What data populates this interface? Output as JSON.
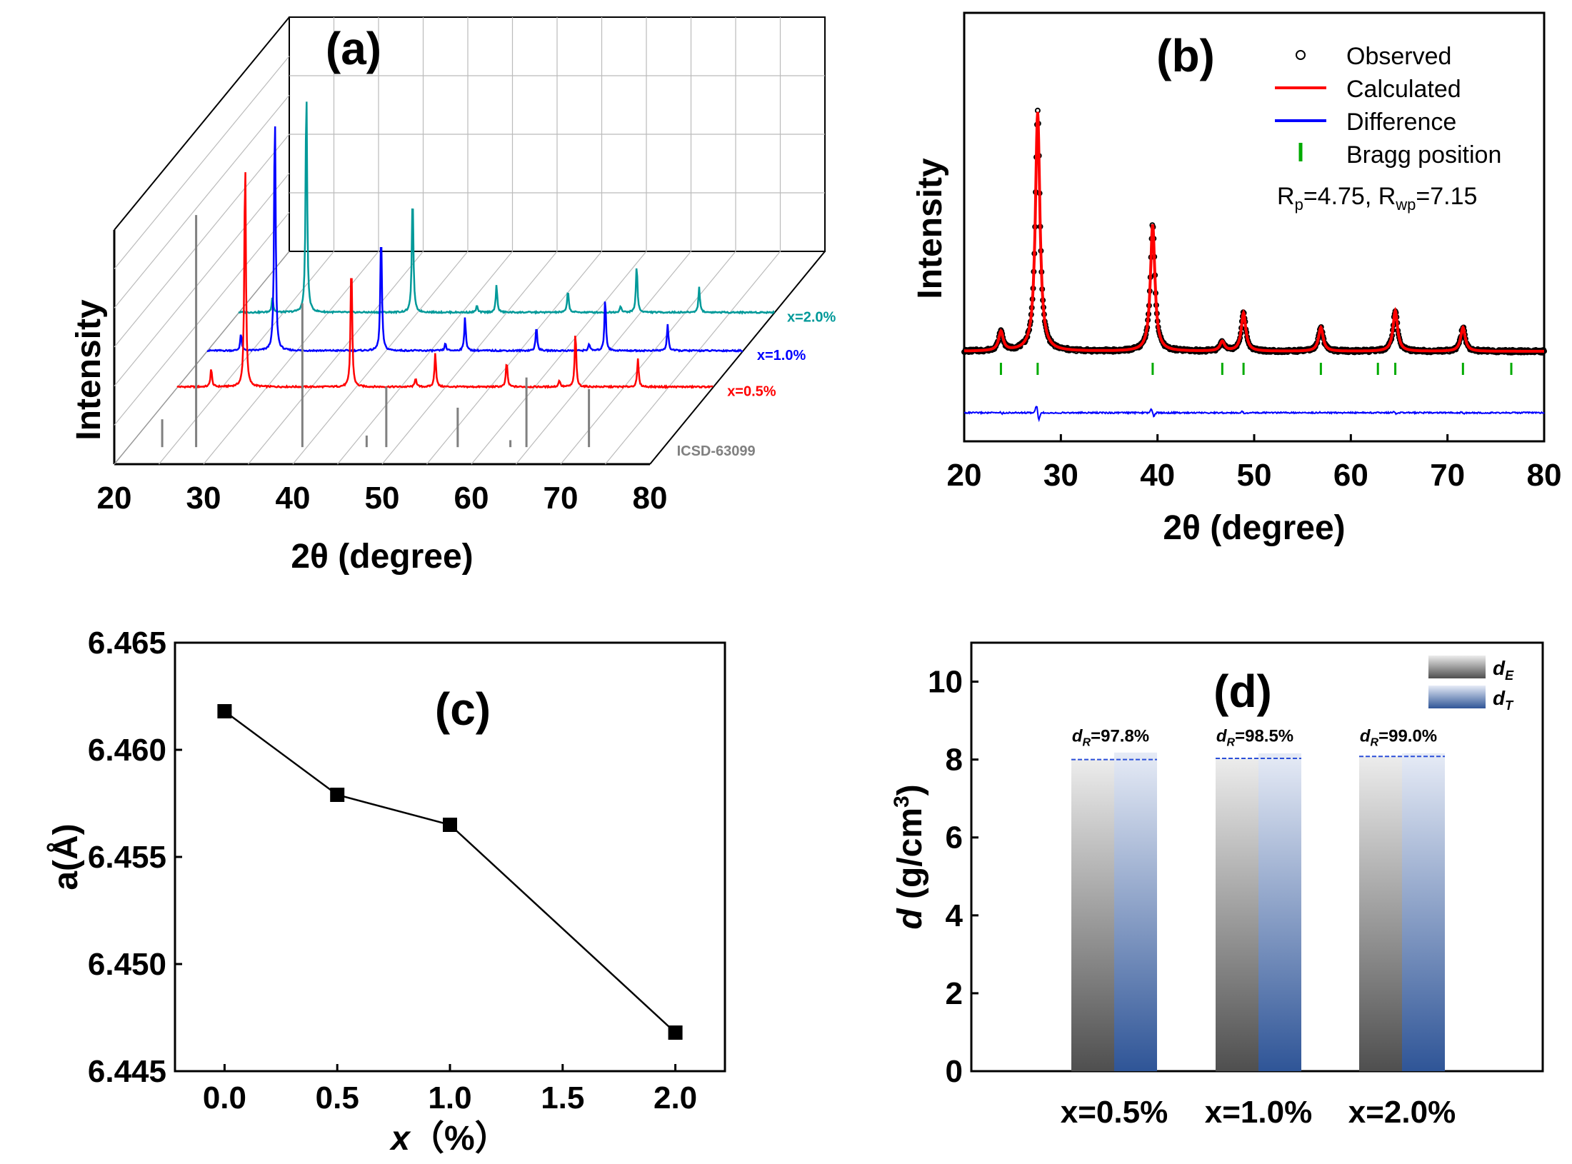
{
  "chart_data": [
    {
      "panel": "(a)",
      "type": "line",
      "title": "(a)",
      "xlabel": "2θ (degree)",
      "ylabel": "Intensity",
      "xlim": [
        20,
        80
      ],
      "xticks": [
        "20",
        "30",
        "40",
        "50",
        "60",
        "70",
        "80"
      ],
      "grid": true,
      "series": [
        {
          "name": "ICSD-63099",
          "color": "#808080",
          "peaks": [
            [
              23.8,
              0.12
            ],
            [
              27.6,
              1.0
            ],
            [
              39.5,
              0.62
            ],
            [
              46.7,
              0.05
            ],
            [
              48.9,
              0.26
            ],
            [
              56.9,
              0.17
            ],
            [
              62.8,
              0.03
            ],
            [
              64.6,
              0.3
            ],
            [
              71.6,
              0.25
            ]
          ]
        },
        {
          "name": "x=0.5%",
          "color": "#ff0000",
          "peaks": [
            [
              23.8,
              0.08
            ],
            [
              27.6,
              1.0
            ],
            [
              39.5,
              0.55
            ],
            [
              46.7,
              0.04
            ],
            [
              48.9,
              0.15
            ],
            [
              56.9,
              0.11
            ],
            [
              62.8,
              0.03
            ],
            [
              64.6,
              0.24
            ],
            [
              71.6,
              0.12
            ]
          ]
        },
        {
          "name": "x=1.0%",
          "color": "#0000ff",
          "peaks": [
            [
              23.8,
              0.07
            ],
            [
              27.6,
              1.0
            ],
            [
              39.5,
              0.5
            ],
            [
              46.7,
              0.03
            ],
            [
              48.9,
              0.14
            ],
            [
              56.9,
              0.1
            ],
            [
              62.8,
              0.03
            ],
            [
              64.6,
              0.22
            ],
            [
              71.6,
              0.11
            ]
          ]
        },
        {
          "name": "x=2.0%",
          "color": "#009999",
          "peaks": [
            [
              23.8,
              0.07
            ],
            [
              27.6,
              1.0
            ],
            [
              39.5,
              0.53
            ],
            [
              46.7,
              0.03
            ],
            [
              48.9,
              0.12
            ],
            [
              56.9,
              0.1
            ],
            [
              62.8,
              0.03
            ],
            [
              64.6,
              0.21
            ],
            [
              71.6,
              0.11
            ]
          ]
        }
      ]
    },
    {
      "panel": "(b)",
      "type": "line",
      "title": "(b)",
      "xlabel": "2θ (degree)",
      "ylabel": "Intensity",
      "xlim": [
        20,
        80
      ],
      "xticks": [
        "20",
        "30",
        "40",
        "50",
        "60",
        "70",
        "80"
      ],
      "legend": [
        "Observed",
        "Calculated",
        "Difference",
        "Bragg position"
      ],
      "annotation": {
        "rp_label": "R",
        "rp_sub": "p",
        "rp_value": "=4.75, ",
        "rwp_label": "R",
        "rwp_sub": "wp",
        "rwp_value": "=7.15"
      },
      "peaks": [
        [
          23.8,
          0.08
        ],
        [
          27.6,
          1.0
        ],
        [
          39.5,
          0.53
        ],
        [
          46.7,
          0.04
        ],
        [
          48.9,
          0.16
        ],
        [
          56.9,
          0.1
        ],
        [
          64.6,
          0.17
        ],
        [
          71.6,
          0.1
        ]
      ],
      "bragg_positions": [
        23.8,
        27.6,
        39.5,
        46.7,
        48.9,
        56.9,
        62.8,
        64.6,
        71.6,
        76.6
      ],
      "colors": {
        "observed": "#000000",
        "calculated": "#ff0000",
        "difference": "#0000ff",
        "bragg": "#00aa00"
      }
    },
    {
      "panel": "(c)",
      "type": "line",
      "title": "(c)",
      "xlabel_main": "x",
      "xlabel_unit": "（%）",
      "ylabel_main": "a(",
      "ylabel_unit": "Å",
      "ylabel_close": ")",
      "x": [
        0.0,
        0.5,
        1.0,
        2.0
      ],
      "y": [
        6.4618,
        6.4579,
        6.4565,
        6.4468
      ],
      "xlim": [
        -0.22,
        2.22
      ],
      "ylim": [
        6.445,
        6.465
      ],
      "xticks": [
        "0.0",
        "0.5",
        "1.0",
        "1.5",
        "2.0"
      ],
      "yticks": [
        "6.445",
        "6.450",
        "6.455",
        "6.460",
        "6.465"
      ]
    },
    {
      "panel": "(d)",
      "type": "bar",
      "title": "(d)",
      "categories": [
        "x=0.5%",
        "x=1.0%",
        "x=2.0%"
      ],
      "ylabel_italic": "d",
      "ylabel_unit": " (g/cm",
      "ylabel_sup": "3",
      "ylabel_close": ")",
      "ylim": [
        0,
        11
      ],
      "yticks": [
        "0",
        "2",
        "4",
        "6",
        "8",
        "10"
      ],
      "series": [
        {
          "name": "d",
          "sub": "E",
          "values": [
            8.0,
            8.03,
            8.08
          ]
        },
        {
          "name": "d",
          "sub": "T",
          "values": [
            8.18,
            8.16,
            8.16
          ]
        }
      ],
      "annotations": [
        {
          "prefix": "d",
          "sub": "R",
          "value": "=97.8%"
        },
        {
          "prefix": "d",
          "sub": "R",
          "value": "=98.5%"
        },
        {
          "prefix": "d",
          "sub": "R",
          "value": "=99.0%"
        }
      ]
    }
  ]
}
